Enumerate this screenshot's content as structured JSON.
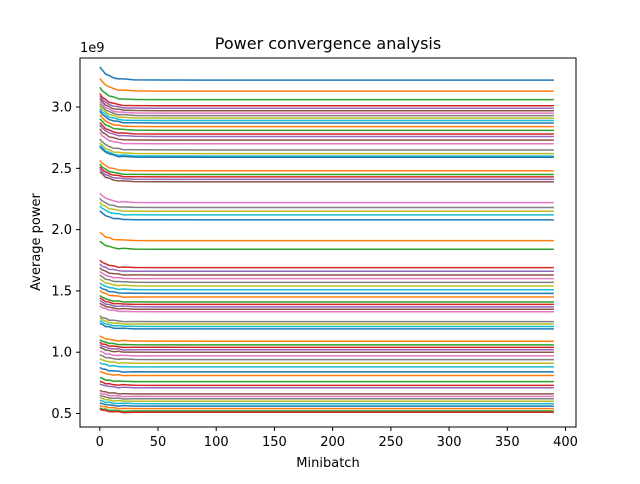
{
  "chart_data": {
    "type": "line",
    "title": "Power convergence analysis",
    "xlabel": "Minibatch",
    "ylabel": "Average power",
    "y_offset_label": "1e9",
    "xlim": [
      -17,
      409
    ],
    "ylim": [
      0.39,
      3.4
    ],
    "x_ticks": [
      0,
      50,
      100,
      150,
      200,
      250,
      300,
      350,
      400
    ],
    "x_tick_labels": [
      "0",
      "50",
      "100",
      "150",
      "200",
      "250",
      "300",
      "350",
      "400"
    ],
    "y_ticks": [
      0.5,
      1.0,
      1.5,
      2.0,
      2.5,
      3.0
    ],
    "y_tick_labels": [
      "0.5",
      "1.0",
      "1.5",
      "2.0",
      "2.5",
      "3.0"
    ],
    "grid": false,
    "x_end": 390,
    "colors": [
      "#1f77b4",
      "#ff7f0e",
      "#2ca02c",
      "#d62728",
      "#9467bd",
      "#8c564b",
      "#e377c2",
      "#7f7f7f",
      "#bcbd22",
      "#17becf"
    ],
    "series_final_values": [
      3.22,
      3.13,
      3.06,
      3.01,
      2.99,
      2.97,
      2.95,
      2.93,
      2.91,
      2.89,
      2.87,
      2.84,
      2.81,
      2.78,
      2.76,
      2.73,
      2.7,
      2.65,
      2.62,
      2.6,
      2.59,
      2.48,
      2.45,
      2.43,
      2.41,
      2.39,
      2.22,
      2.18,
      2.15,
      2.12,
      2.08,
      1.91,
      1.84,
      1.69,
      1.66,
      1.63,
      1.6,
      1.57,
      1.54,
      1.51,
      1.48,
      1.45,
      1.41,
      1.39,
      1.37,
      1.35,
      1.33,
      1.25,
      1.23,
      1.21,
      1.19,
      1.09,
      1.06,
      1.04,
      1.02,
      1.0,
      0.97,
      0.94,
      0.91,
      0.88,
      0.84,
      0.81,
      0.76,
      0.73,
      0.71,
      0.66,
      0.64,
      0.62,
      0.6,
      0.58,
      0.56,
      0.54,
      0.52,
      0.51
    ]
  }
}
